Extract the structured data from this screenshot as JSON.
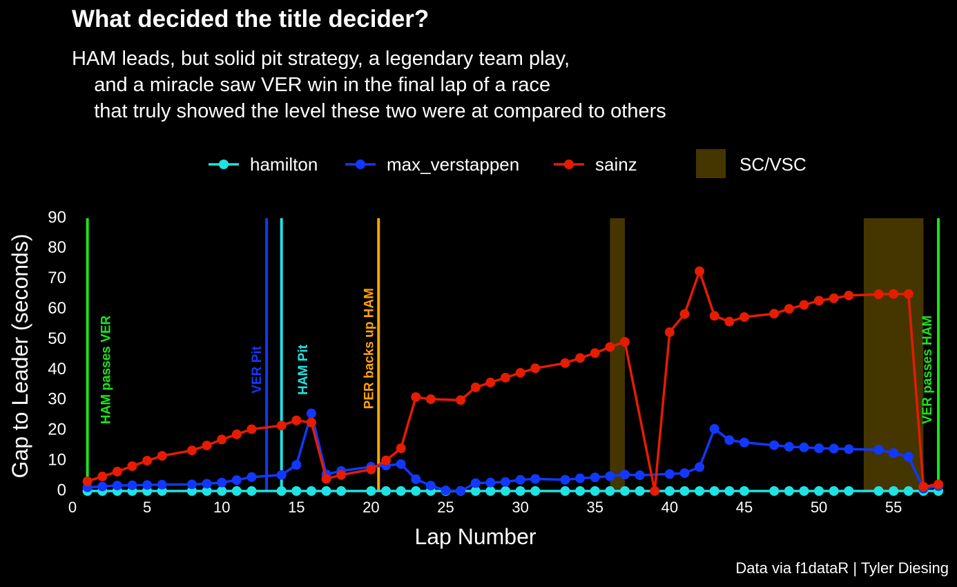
{
  "title": "What decided the title decider?",
  "subtitle": [
    "HAM leads, but solid pit strategy, a legendary team play,",
    "    and a miracle saw VER win in the final lap of a race",
    "    that truly showed the level these two were at compared to others"
  ],
  "caption": "Data via f1dataR | Tyler Diesing",
  "colors": {
    "background": "#000000",
    "hamilton": "#1fe3e3",
    "max_verstappen": "#1238ff",
    "sainz": "#e51c00",
    "sc_vsc": "#453600",
    "green_event": "#17e817",
    "orange_event": "#ffa500"
  },
  "chart_data": {
    "type": "line",
    "xlabel": "Lap Number",
    "ylabel": "Gap to Leader (seconds)",
    "xlim": [
      0,
      58.6
    ],
    "ylim": [
      0,
      90
    ],
    "xticks": [
      0,
      5,
      10,
      15,
      20,
      25,
      30,
      35,
      40,
      45,
      50,
      55
    ],
    "yticks": [
      0,
      10,
      20,
      30,
      40,
      50,
      60,
      70,
      80,
      90
    ],
    "grid": false,
    "legend_position": "top",
    "sc_legend_label": "SC/VSC",
    "series": [
      {
        "name": "hamilton",
        "color": "#1fe3e3",
        "x": [
          1,
          2,
          3,
          4,
          5,
          6,
          8,
          9,
          10,
          11,
          12,
          14,
          15,
          16,
          17,
          18,
          20,
          21,
          22,
          23,
          24,
          25,
          26,
          27,
          28,
          29,
          30,
          31,
          33,
          34,
          35,
          36,
          37,
          38,
          40,
          41,
          42,
          43,
          44,
          45,
          47,
          48,
          49,
          50,
          51,
          52,
          54,
          55,
          56,
          57,
          58
        ],
        "y": [
          0,
          0,
          0,
          0,
          0,
          0,
          0,
          0,
          0,
          0,
          0,
          0,
          0,
          0,
          0,
          0,
          0,
          0,
          0,
          0,
          0,
          0,
          0,
          0,
          0,
          0,
          0,
          0,
          0,
          0,
          0,
          0,
          0,
          0,
          0,
          0,
          0,
          0,
          0,
          0,
          0,
          0,
          0,
          0,
          0,
          0,
          0,
          0,
          0,
          0,
          0
        ]
      },
      {
        "name": "max_verstappen",
        "color": "#1238ff",
        "x": [
          1,
          2,
          3,
          4,
          5,
          6,
          8,
          9,
          10,
          11,
          12,
          14,
          15,
          16,
          17,
          18,
          20,
          21,
          22,
          23,
          24,
          25,
          26,
          27,
          28,
          29,
          30,
          31,
          33,
          34,
          35,
          36,
          37,
          38,
          40,
          41,
          42,
          43,
          44,
          45,
          47,
          48,
          49,
          50,
          51,
          52,
          54,
          55,
          56,
          57,
          58
        ],
        "y": [
          1.2,
          1.5,
          1.8,
          1.9,
          2.0,
          2.1,
          2.2,
          2.4,
          2.8,
          3.6,
          4.6,
          5.3,
          8.6,
          25.6,
          5.5,
          6.6,
          8.0,
          8.4,
          8.9,
          3.9,
          1.8,
          0.2,
          0.0,
          2.6,
          2.8,
          3.0,
          3.7,
          4.0,
          3.7,
          4.2,
          4.5,
          4.9,
          5.4,
          5.2,
          5.6,
          5.9,
          7.9,
          20.5,
          16.8,
          16.0,
          15.1,
          14.6,
          14.4,
          14.1,
          14.0,
          13.8,
          13.6,
          12.5,
          11.3,
          0.8,
          1.6
        ]
      },
      {
        "name": "sainz",
        "color": "#e51c00",
        "x": [
          1,
          2,
          3,
          4,
          5,
          6,
          8,
          9,
          10,
          11,
          12,
          14,
          15,
          16,
          17,
          18,
          20,
          21,
          22,
          23,
          24,
          26,
          27,
          28,
          29,
          30,
          31,
          33,
          34,
          35,
          36,
          37,
          39,
          40,
          41,
          42,
          43,
          44,
          45,
          47,
          48,
          49,
          50,
          51,
          52,
          54,
          55,
          56,
          57,
          58
        ],
        "y": [
          3.2,
          4.8,
          6.4,
          8.2,
          10.0,
          11.6,
          13.4,
          15.0,
          17.0,
          18.7,
          20.4,
          21.6,
          23.3,
          22.6,
          4.0,
          5.3,
          7.1,
          10.1,
          14.1,
          31.0,
          30.3,
          30.0,
          34.2,
          35.8,
          37.4,
          39.0,
          40.5,
          42.2,
          43.9,
          45.5,
          47.5,
          49.2,
          0.0,
          52.4,
          58.4,
          72.5,
          57.8,
          55.9,
          57.4,
          58.5,
          60.1,
          61.4,
          62.8,
          63.6,
          64.5,
          64.9,
          65.0,
          65.0,
          1.4,
          2.2
        ]
      }
    ],
    "sc_periods": [
      [
        36,
        37
      ],
      [
        53,
        57
      ]
    ],
    "events": [
      {
        "x": 1,
        "label": "HAM passes VER",
        "color": "#17e817",
        "text_x": 2.3,
        "text_y": 40
      },
      {
        "x": 13,
        "label": "VER Pit",
        "color": "#1238ff",
        "text_x": 12.4,
        "text_y": 40
      },
      {
        "x": 14,
        "label": "HAM Pit",
        "color": "#1fe3e3",
        "text_x": 15.5,
        "text_y": 40
      },
      {
        "x": 20.5,
        "label": "PER backs up HAM",
        "color": "#ffa500",
        "text_x": 19.9,
        "text_y": 47
      },
      {
        "x": 58,
        "label": "VER passes HAM",
        "color": "#17e817",
        "text_x": 57.3,
        "text_y": 40
      }
    ]
  }
}
